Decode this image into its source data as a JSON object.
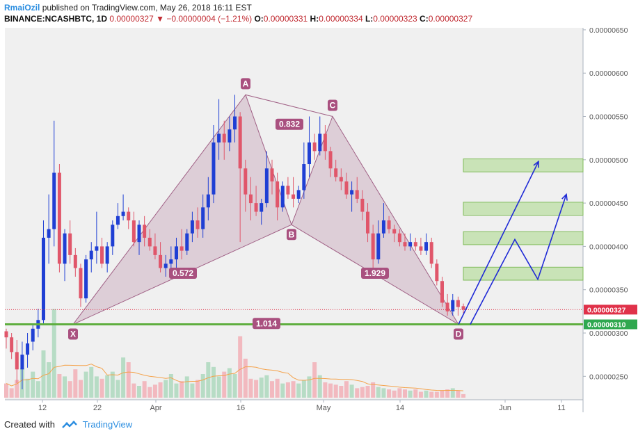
{
  "header": {
    "author": "RmaiOzil",
    "published": " published on TradingView.com, May 26, 2018 16:11 EST",
    "symbol": "BINANCE:NCASHBTC, 1D",
    "last": "0.00000327",
    "change": "−0.00000004 (−1.21%)",
    "open_label": "O:",
    "open": "0.00000331",
    "high_label": "H:",
    "high": "0.00000334",
    "low_label": "L:",
    "low": "0.00000323",
    "close_label": "C:",
    "close": "0.00000327"
  },
  "footer": {
    "created_with": "Created with",
    "brand": "TradingView"
  },
  "chart_data": {
    "type": "candlestick",
    "y_ticks": [
      "0.00000650",
      "0.00000600",
      "0.00000550",
      "0.00000500",
      "0.00000450",
      "0.00000400",
      "0.00000350",
      "0.00000300",
      "0.00000250"
    ],
    "x_ticks": [
      "12",
      "22",
      "Apr",
      "16",
      "May",
      "14",
      "Jun",
      "11"
    ],
    "ylim": [
      2.2e-06,
      6.5e-06
    ],
    "price_badges": [
      {
        "value": "0.00000327",
        "color": "#e0324a"
      },
      {
        "value": "0.00000310",
        "color": "#2fa84f"
      }
    ],
    "candles": [
      [
        3.02,
        3.05,
        2.82,
        2.95
      ],
      [
        2.95,
        3.0,
        2.7,
        2.78
      ],
      [
        2.78,
        2.92,
        2.42,
        2.58
      ],
      [
        2.58,
        2.9,
        2.35,
        2.75
      ],
      [
        2.75,
        3.0,
        2.6,
        2.88
      ],
      [
        2.9,
        3.1,
        2.8,
        3.05
      ],
      [
        3.05,
        3.28,
        2.95,
        3.15
      ],
      [
        3.15,
        4.3,
        3.1,
        4.1
      ],
      [
        4.1,
        4.6,
        3.8,
        4.2
      ],
      [
        4.2,
        5.45,
        4.0,
        4.85
      ],
      [
        4.85,
        4.95,
        3.7,
        3.8
      ],
      [
        3.8,
        4.2,
        3.6,
        4.15
      ],
      [
        4.15,
        4.3,
        3.8,
        3.9
      ],
      [
        3.9,
        3.98,
        3.65,
        3.75
      ],
      [
        3.75,
        3.8,
        3.3,
        3.4
      ],
      [
        3.4,
        3.9,
        3.35,
        3.85
      ],
      [
        3.85,
        4.05,
        3.7,
        3.95
      ],
      [
        3.95,
        4.4,
        3.8,
        4.0
      ],
      [
        4.0,
        4.1,
        3.75,
        3.8
      ],
      [
        3.8,
        4.05,
        3.7,
        4.0
      ],
      [
        4.0,
        4.3,
        3.9,
        4.25
      ],
      [
        4.25,
        4.5,
        4.2,
        4.35
      ],
      [
        4.35,
        4.6,
        4.3,
        4.4
      ],
      [
        4.4,
        4.45,
        4.2,
        4.3
      ],
      [
        4.3,
        4.4,
        4.0,
        4.05
      ],
      [
        4.05,
        4.3,
        3.9,
        4.25
      ],
      [
        4.25,
        4.35,
        4.0,
        4.1
      ],
      [
        4.1,
        4.2,
        3.95,
        4.0
      ],
      [
        4.0,
        4.15,
        3.85,
        3.9
      ],
      [
        3.9,
        4.05,
        3.7,
        3.75
      ],
      [
        3.75,
        3.9,
        3.65,
        3.8
      ],
      [
        3.8,
        4.0,
        3.7,
        3.85
      ],
      [
        3.85,
        4.1,
        3.75,
        4.0
      ],
      [
        4.0,
        4.2,
        3.85,
        3.95
      ],
      [
        3.95,
        4.2,
        3.9,
        4.15
      ],
      [
        4.15,
        4.4,
        4.05,
        4.3
      ],
      [
        4.3,
        4.45,
        4.1,
        4.2
      ],
      [
        4.2,
        4.6,
        4.1,
        4.45
      ],
      [
        4.45,
        4.8,
        4.3,
        4.6
      ],
      [
        4.6,
        5.4,
        4.5,
        5.2
      ],
      [
        5.2,
        5.7,
        5.0,
        5.3
      ],
      [
        5.3,
        5.45,
        5.0,
        5.2
      ],
      [
        5.2,
        5.5,
        5.1,
        5.35
      ],
      [
        5.35,
        5.75,
        5.2,
        5.5
      ],
      [
        5.5,
        5.55,
        4.05,
        4.9
      ],
      [
        4.9,
        5.0,
        4.4,
        4.6
      ],
      [
        4.6,
        4.8,
        4.3,
        4.5
      ],
      [
        4.5,
        4.7,
        4.35,
        4.4
      ],
      [
        4.4,
        4.55,
        4.25,
        4.5
      ],
      [
        4.5,
        5.1,
        4.45,
        4.9
      ],
      [
        4.9,
        5.0,
        4.6,
        4.75
      ],
      [
        4.75,
        4.85,
        4.3,
        4.45
      ],
      [
        4.45,
        4.75,
        4.4,
        4.7
      ],
      [
        4.7,
        4.8,
        4.55,
        4.6
      ],
      [
        4.6,
        4.8,
        4.45,
        4.55
      ],
      [
        4.55,
        4.7,
        4.5,
        4.65
      ],
      [
        4.65,
        5.2,
        4.55,
        4.95
      ],
      [
        4.95,
        5.5,
        4.8,
        5.2
      ],
      [
        5.2,
        5.3,
        5.0,
        5.1
      ],
      [
        5.1,
        5.5,
        5.05,
        5.3
      ],
      [
        5.3,
        5.4,
        5.0,
        5.1
      ],
      [
        5.1,
        5.15,
        4.8,
        4.9
      ],
      [
        4.9,
        5.0,
        4.75,
        4.8
      ],
      [
        4.8,
        4.9,
        4.65,
        4.75
      ],
      [
        4.75,
        4.85,
        4.55,
        4.6
      ],
      [
        4.6,
        4.75,
        4.4,
        4.65
      ],
      [
        4.65,
        4.8,
        4.5,
        4.55
      ],
      [
        4.55,
        4.65,
        4.3,
        4.4
      ],
      [
        4.4,
        4.5,
        4.05,
        4.15
      ],
      [
        4.15,
        4.25,
        3.75,
        3.85
      ],
      [
        3.85,
        4.3,
        3.8,
        4.15
      ],
      [
        4.15,
        4.5,
        4.1,
        4.3
      ],
      [
        4.3,
        4.35,
        4.15,
        4.2
      ],
      [
        4.2,
        4.25,
        4.05,
        4.15
      ],
      [
        4.15,
        4.2,
        4.0,
        4.05
      ],
      [
        4.05,
        4.15,
        3.95,
        4.0
      ],
      [
        4.0,
        4.15,
        3.95,
        4.05
      ],
      [
        4.05,
        4.1,
        3.95,
        4.0
      ],
      [
        4.0,
        4.1,
        3.9,
        3.95
      ],
      [
        3.95,
        4.15,
        3.9,
        4.05
      ],
      [
        4.05,
        4.1,
        3.75,
        3.8
      ],
      [
        3.8,
        3.85,
        3.55,
        3.6
      ],
      [
        3.6,
        3.65,
        3.3,
        3.35
      ],
      [
        3.35,
        3.45,
        3.2,
        3.25
      ],
      [
        3.25,
        3.45,
        3.2,
        3.38
      ],
      [
        3.38,
        3.42,
        3.2,
        3.3
      ],
      [
        3.31,
        3.34,
        3.23,
        3.27
      ]
    ],
    "volumes": [
      1.2,
      0.8,
      1.5,
      2.5,
      1.6,
      2.2,
      1.4,
      4.0,
      3.0,
      7.5,
      2.0,
      1.8,
      1.4,
      2.4,
      1.5,
      2.2,
      2.6,
      1.8,
      1.6,
      1.9,
      2.2,
      1.5,
      3.4,
      3.0,
      1.2,
      1.0,
      1.4,
      0.9,
      1.1,
      1.3,
      1.5,
      2.0,
      1.2,
      1.4,
      1.8,
      1.2,
      1.5,
      2.0,
      3.0,
      2.6,
      1.8,
      2.2,
      2.5,
      2.0,
      5.2,
      3.3,
      1.6,
      1.5,
      1.7,
      1.9,
      1.4,
      1.6,
      1.2,
      1.3,
      1.4,
      1.2,
      1.5,
      1.8,
      3.0,
      1.9,
      1.3,
      1.2,
      1.1,
      1.0,
      1.4,
      1.1,
      0.8,
      0.9,
      1.0,
      1.3,
      0.9,
      0.8,
      0.7,
      0.6,
      0.8,
      0.7,
      0.6,
      0.7,
      0.5,
      0.6,
      0.5,
      0.5,
      0.6,
      0.7,
      0.8,
      0.6,
      0.3
    ],
    "pattern": {
      "points": [
        {
          "label": "X",
          "v": 3.1
        },
        {
          "label": "A",
          "v": 5.75
        },
        {
          "label": "B",
          "v": 4.25
        },
        {
          "label": "C",
          "v": 5.5
        },
        {
          "label": "D",
          "v": 3.1
        }
      ],
      "ratios": [
        "0.572",
        "0.832",
        "1.929",
        "1.014"
      ]
    },
    "target_zones": [
      [
        4.86,
        5.01
      ],
      [
        4.36,
        4.51
      ],
      [
        4.02,
        4.17
      ],
      [
        3.61,
        3.76
      ]
    ]
  }
}
